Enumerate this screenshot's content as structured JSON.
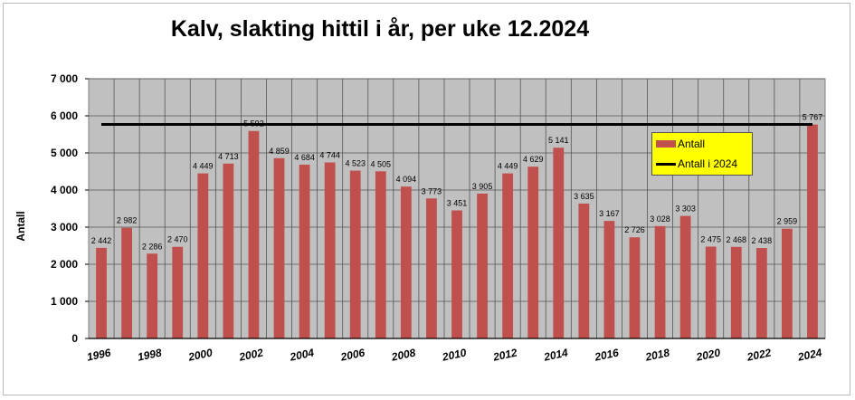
{
  "chart_data": {
    "type": "bar",
    "title": "Kalv, slakting hittil i år, per uke 12.2024",
    "ylabel": "Antall",
    "xlabel": "",
    "ylim": [
      0,
      7000
    ],
    "yticks": [
      "0",
      "1 000",
      "2 000",
      "3 000",
      "4 000",
      "5 000",
      "6 000",
      "7 000"
    ],
    "xtick_labels": [
      "1996",
      "1998",
      "2000",
      "2002",
      "2004",
      "2006",
      "2008",
      "2010",
      "2012",
      "2014",
      "2016",
      "2018",
      "2020",
      "2022",
      "2024"
    ],
    "grid": true,
    "legend_position": "top-right",
    "categories": [
      "1996",
      "1997",
      "1998",
      "1999",
      "2000",
      "2001",
      "2002",
      "2003",
      "2004",
      "2005",
      "2006",
      "2007",
      "2008",
      "2009",
      "2010",
      "2011",
      "2012",
      "2013",
      "2014",
      "2015",
      "2016",
      "2017",
      "2018",
      "2019",
      "2020",
      "2021",
      "2022",
      "2023",
      "2024"
    ],
    "series": [
      {
        "name": "Antall",
        "color": "#c0504d",
        "values": [
          2442,
          2982,
          2286,
          2470,
          4449,
          4713,
          5592,
          4859,
          4684,
          4744,
          4523,
          4505,
          4094,
          3773,
          3451,
          3905,
          4449,
          4629,
          5141,
          3635,
          3167,
          2726,
          3028,
          3303,
          2475,
          2468,
          2438,
          2959,
          5767
        ],
        "labels": [
          "2 442",
          "2 982",
          "2 286",
          "2 470",
          "4 449",
          "4 713",
          "5 592",
          "4 859",
          "4 684",
          "4 744",
          "4 523",
          "4 505",
          "4 094",
          "3 773",
          "3 451",
          "3 905",
          "4 449",
          "4 629",
          "5 141",
          "3 635",
          "3 167",
          "2 726",
          "3 028",
          "3 303",
          "2 475",
          "2 468",
          "2 438",
          "2 959",
          "5 767"
        ]
      },
      {
        "name": "Antall i 2024",
        "type": "line",
        "color": "#000000",
        "value": 5767
      }
    ]
  }
}
